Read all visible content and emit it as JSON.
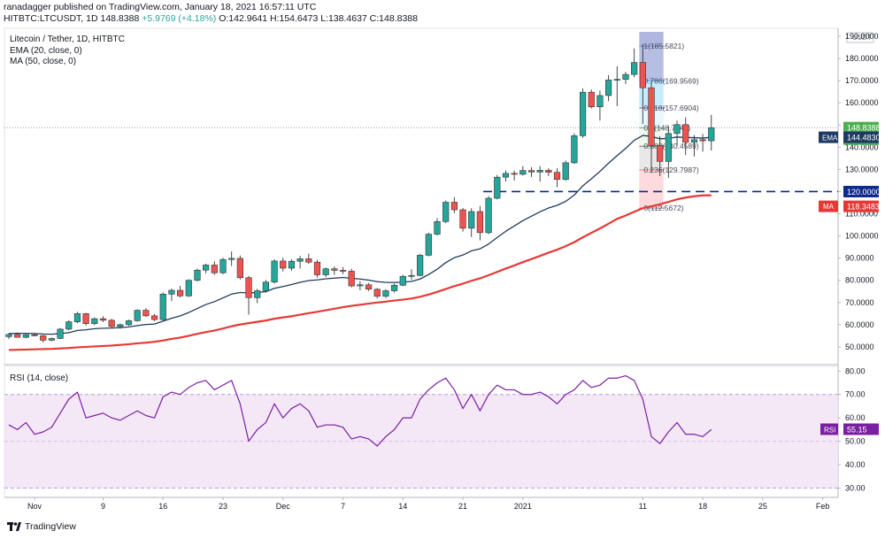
{
  "header": {
    "line1": "ranadagger published on TradingView.com, January 18, 2021 16:57:11 UTC",
    "symbol": "HITBTC:LTCUSDT, 1D",
    "last": "148.8388",
    "change": "+5.9769 (+4.18%)",
    "ohlc": "O:142.9641 H:154.6473 L:138.4637 C:148.8388"
  },
  "legend": {
    "title": "Litecoin / Tether, 1D, HITBTC",
    "ema": "EMA (20, close, 0)",
    "ma": "MA (50, close, 0)"
  },
  "rsi_title": "RSI (14, close)",
  "footer": {
    "brand": "TradingView"
  },
  "currency": "USDT",
  "colors": {
    "up": "#26a69a",
    "down": "#ef5350",
    "ema": "#1e3a5f",
    "ma": "#e53935",
    "rsi": "#7b1fa2",
    "support": "#0d2a8c"
  },
  "labels": {
    "price": "148.8388",
    "time": "07:02:54",
    "ema": "EMA",
    "ema_value": "144.4830",
    "support": "120.0000",
    "ma": "MA",
    "ma_value": "118.3483",
    "rsi": "RSI",
    "rsi_value": "55.15"
  },
  "fib_labels": [
    "1(185.5821)",
    "0.786(169.9569)",
    "0.618(157.6904)",
    "0.5(148.7247)",
    "0.382(140.4589)",
    "0.236(129.7987)",
    "0(112.5672)"
  ],
  "chart_data": [
    {
      "type": "candlestick",
      "title": "Litecoin / Tether, 1D, HITBTC",
      "x_ticks": [
        "Nov",
        "9",
        "16",
        "23",
        "Dec",
        "7",
        "14",
        "21",
        "2021",
        "11",
        "18",
        "25",
        "Feb"
      ],
      "y_ticks": [
        "50.0000",
        "60.0000",
        "70.0000",
        "80.0000",
        "90.0000",
        "100.0000",
        "110.0000",
        "120.0000",
        "130.0000",
        "140.0000",
        "150.0000",
        "160.0000",
        "170.0000",
        "180.0000",
        "190.0000"
      ],
      "ylim": [
        42,
        192
      ],
      "support_level": 120,
      "fib_levels": [
        185.5821,
        169.9569,
        157.6904,
        148.7247,
        140.4589,
        129.7987,
        112.5672
      ],
      "candles": [
        [
          54.6,
          56.2,
          53.5,
          55.6
        ],
        [
          55.6,
          56.5,
          54.2,
          54.3
        ],
        [
          54.3,
          55.8,
          53.9,
          55.5
        ],
        [
          55.5,
          56.3,
          54.8,
          55.0
        ],
        [
          55.0,
          55.4,
          52.0,
          53.0
        ],
        [
          53.0,
          54.2,
          52.5,
          53.8
        ],
        [
          53.8,
          58.5,
          53.5,
          58.0
        ],
        [
          58.0,
          62.0,
          57.4,
          61.3
        ],
        [
          61.3,
          65.8,
          60.7,
          65.0
        ],
        [
          65.0,
          65.3,
          59.6,
          60.5
        ],
        [
          60.5,
          63.3,
          59.8,
          62.7
        ],
        [
          62.7,
          63.8,
          61.2,
          62.0
        ],
        [
          62.0,
          62.7,
          58.6,
          59.2
        ],
        [
          59.2,
          60.5,
          58.2,
          60.0
        ],
        [
          60.0,
          62.3,
          59.5,
          61.8
        ],
        [
          61.8,
          66.9,
          61.4,
          66.5
        ],
        [
          66.5,
          67.5,
          63.5,
          64.0
        ],
        [
          64.0,
          64.8,
          61.7,
          62.3
        ],
        [
          62.3,
          74.5,
          62.0,
          73.8
        ],
        [
          73.8,
          76.3,
          70.7,
          75.5
        ],
        [
          75.5,
          77.5,
          72.3,
          73.0
        ],
        [
          73.0,
          80.5,
          72.5,
          80.0
        ],
        [
          80.0,
          85.3,
          79.5,
          84.6
        ],
        [
          84.6,
          87.5,
          83.2,
          86.9
        ],
        [
          86.9,
          88.5,
          82.5,
          83.4
        ],
        [
          83.4,
          90.2,
          82.8,
          89.4
        ],
        [
          89.4,
          93.0,
          86.5,
          89.9
        ],
        [
          89.9,
          91.2,
          80.4,
          81.2
        ],
        [
          81.2,
          82.0,
          64.5,
          72.2
        ],
        [
          72.2,
          76.2,
          69.7,
          75.3
        ],
        [
          75.3,
          80.2,
          74.5,
          79.2
        ],
        [
          79.2,
          89.5,
          78.5,
          88.7
        ],
        [
          88.7,
          90.2,
          84.0,
          85.5
        ],
        [
          85.5,
          89.5,
          84.3,
          88.6
        ],
        [
          88.6,
          91.0,
          85.3,
          89.7
        ],
        [
          89.7,
          92.0,
          87.4,
          88.2
        ],
        [
          88.2,
          89.2,
          81.2,
          82.5
        ],
        [
          82.5,
          85.8,
          81.5,
          85.2
        ],
        [
          85.2,
          86.3,
          82.5,
          84.5
        ],
        [
          84.5,
          86.0,
          82.8,
          84.1
        ],
        [
          84.1,
          85.2,
          76.8,
          77.5
        ],
        [
          77.5,
          79.7,
          75.5,
          78.0
        ],
        [
          78.0,
          78.8,
          75.2,
          76.0
        ],
        [
          76.0,
          76.5,
          71.8,
          72.8
        ],
        [
          72.8,
          76.0,
          72.0,
          75.3
        ],
        [
          75.3,
          78.5,
          74.5,
          77.8
        ],
        [
          77.8,
          82.5,
          77.3,
          81.8
        ],
        [
          81.8,
          85.0,
          80.2,
          82.2
        ],
        [
          82.2,
          92.0,
          81.8,
          91.3
        ],
        [
          91.3,
          101.5,
          90.8,
          100.8
        ],
        [
          100.8,
          108.0,
          100.2,
          106.5
        ],
        [
          106.5,
          116.0,
          105.8,
          115.2
        ],
        [
          115.2,
          117.5,
          110.3,
          111.8
        ],
        [
          111.8,
          112.6,
          102.0,
          103.5
        ],
        [
          103.5,
          112.5,
          99.5,
          111.0
        ],
        [
          111.0,
          113.5,
          98.0,
          101.5
        ],
        [
          101.5,
          118.0,
          100.8,
          117.0
        ],
        [
          117.0,
          127.5,
          116.5,
          126.5
        ],
        [
          126.5,
          129.5,
          124.5,
          128.2
        ],
        [
          128.2,
          129.5,
          125.0,
          127.8
        ],
        [
          127.8,
          131.5,
          127.3,
          129.5
        ],
        [
          129.5,
          131.0,
          126.5,
          128.8
        ],
        [
          128.8,
          131.5,
          124.5,
          129.6
        ],
        [
          129.6,
          130.5,
          127.0,
          128.7
        ],
        [
          128.7,
          130.5,
          122.0,
          125.5
        ],
        [
          125.5,
          134.0,
          124.8,
          133.0
        ],
        [
          133.0,
          146.3,
          132.5,
          145.2
        ],
        [
          145.2,
          166.5,
          144.2,
          164.8
        ],
        [
          164.8,
          166.0,
          157.5,
          158.2
        ],
        [
          158.2,
          165.5,
          152.0,
          163.3
        ],
        [
          163.3,
          172.5,
          160.8,
          170.3
        ],
        [
          170.3,
          176.5,
          158.5,
          170.6
        ],
        [
          170.6,
          174.0,
          168.5,
          172.8
        ],
        [
          172.8,
          184.5,
          171.5,
          178.2
        ],
        [
          178.2,
          186.5,
          150.5,
          166.8
        ],
        [
          166.8,
          169.5,
          128.5,
          140.8
        ],
        [
          140.8,
          145.0,
          127.0,
          133.6
        ],
        [
          133.6,
          149.5,
          126.2,
          146.2
        ],
        [
          146.2,
          152.0,
          140.5,
          150.2
        ],
        [
          150.2,
          153.5,
          136.5,
          142.2
        ],
        [
          142.2,
          145.5,
          135.8,
          143.4
        ],
        [
          143.4,
          146.0,
          138.0,
          142.9
        ],
        [
          142.9,
          154.6,
          138.5,
          148.8
        ]
      ],
      "ema20": [
        56.0,
        56.1,
        56.1,
        56.0,
        55.8,
        55.7,
        56.0,
        56.4,
        57.4,
        57.7,
        58.2,
        58.4,
        58.5,
        58.7,
        59.0,
        59.6,
        60.1,
        60.3,
        61.6,
        62.9,
        64.0,
        65.5,
        67.3,
        69.1,
        70.4,
        72.1,
        73.8,
        74.5,
        74.3,
        74.5,
        74.9,
        76.4,
        77.2,
        78.1,
        79.1,
        79.9,
        80.2,
        80.7,
        81.0,
        81.3,
        80.9,
        80.6,
        80.1,
        79.4,
        79.1,
        79.0,
        79.2,
        79.5,
        80.6,
        82.6,
        85.0,
        88.0,
        90.2,
        91.4,
        93.3,
        94.2,
        96.4,
        99.3,
        102.1,
        104.5,
        106.9,
        108.9,
        110.9,
        112.6,
        113.8,
        115.6,
        118.4,
        122.6,
        125.8,
        129.1,
        132.8,
        136.2,
        139.5,
        143.1,
        145.3,
        144.9,
        143.8,
        144.0,
        144.6,
        144.4,
        144.3,
        144.1,
        144.5
      ],
      "ma50": [
        48.6,
        48.7,
        48.8,
        48.9,
        49.0,
        49.1,
        49.3,
        49.5,
        49.8,
        50.0,
        50.2,
        50.4,
        50.6,
        50.9,
        51.2,
        51.6,
        51.9,
        52.3,
        52.9,
        53.6,
        54.2,
        55.0,
        55.9,
        56.7,
        57.4,
        58.3,
        59.3,
        60.1,
        60.7,
        61.3,
        61.9,
        62.7,
        63.3,
        63.8,
        64.5,
        65.2,
        65.8,
        66.5,
        67.2,
        67.9,
        68.5,
        69.0,
        69.5,
        70.0,
        70.4,
        70.9,
        71.3,
        71.8,
        72.6,
        73.6,
        74.8,
        76.1,
        77.4,
        78.5,
        79.8,
        80.9,
        82.3,
        83.8,
        85.3,
        86.7,
        88.2,
        89.6,
        91.0,
        92.5,
        93.8,
        95.4,
        97.2,
        99.4,
        101.4,
        103.4,
        105.5,
        107.7,
        109.2,
        110.9,
        112.5,
        113.4,
        114.3,
        115.4,
        116.5,
        117.3,
        117.9,
        118.3,
        118.3
      ]
    },
    {
      "type": "line",
      "title": "RSI (14, close)",
      "series_name": "RSI",
      "y_ticks": [
        "30.00",
        "40.00",
        "50.00",
        "60.00",
        "70.00",
        "80.00"
      ],
      "ylim": [
        26,
        82
      ],
      "band": [
        30,
        70
      ],
      "values": [
        57,
        55,
        58,
        53,
        54,
        56,
        62,
        68,
        71,
        60,
        61,
        62,
        60,
        59,
        61,
        63,
        61,
        60,
        69,
        71,
        70,
        73,
        75,
        76,
        72,
        74,
        76,
        66,
        50,
        55,
        58,
        66,
        60,
        64,
        66,
        63,
        56,
        57,
        57,
        56,
        51,
        52,
        51,
        48,
        52,
        55,
        60,
        60,
        68,
        72,
        75,
        77,
        72,
        64,
        70,
        63,
        70,
        74,
        72,
        72,
        70,
        70,
        71,
        69,
        66,
        70,
        72,
        76,
        73,
        74,
        77,
        77,
        78,
        76,
        68,
        52,
        49,
        54,
        58,
        53,
        53,
        52,
        55
      ]
    }
  ]
}
